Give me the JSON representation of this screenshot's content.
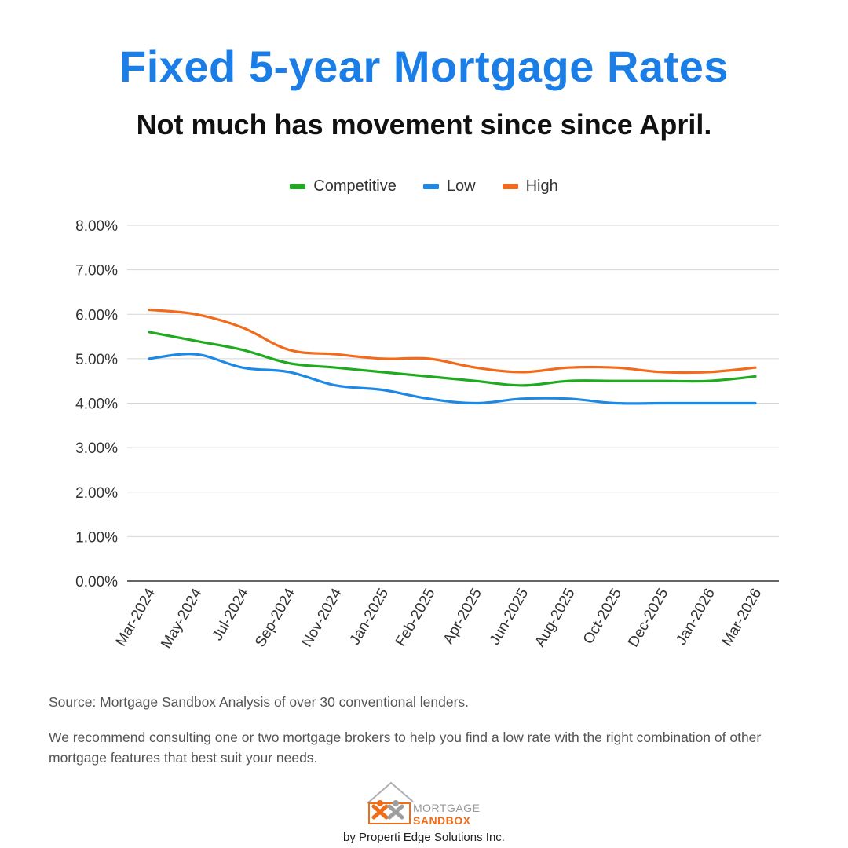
{
  "header": {
    "title": "Fixed 5-year Mortgage Rates",
    "subtitle": "Not much has movement since since April."
  },
  "colors": {
    "title": "#1a7ee6",
    "competitive": "#1faa1f",
    "low": "#1e88e5",
    "high": "#f26b1d",
    "grid": "#d6d6d6",
    "axis": "#333333"
  },
  "chart_data": {
    "type": "line",
    "title": "",
    "xlabel": "",
    "ylabel": "",
    "ylim": [
      0,
      8
    ],
    "y_ticks": [
      "0.00%",
      "1.00%",
      "2.00%",
      "3.00%",
      "4.00%",
      "5.00%",
      "6.00%",
      "7.00%",
      "8.00%"
    ],
    "legend_position": "top-center",
    "grid": true,
    "categories": [
      "Mar-2024",
      "May-2024",
      "Jul-2024",
      "Sep-2024",
      "Nov-2024",
      "Jan-2025",
      "Feb-2025",
      "Apr-2025",
      "Jun-2025",
      "Aug-2025",
      "Oct-2025",
      "Dec-2025",
      "Jan-2026",
      "Mar-2026"
    ],
    "series": [
      {
        "name": "Competitive",
        "color_key": "competitive",
        "values": [
          5.6,
          5.4,
          5.2,
          4.9,
          4.8,
          4.7,
          4.6,
          4.5,
          4.4,
          4.5,
          4.5,
          4.5,
          4.5,
          4.6
        ]
      },
      {
        "name": "Low",
        "color_key": "low",
        "values": [
          5.0,
          5.1,
          4.8,
          4.7,
          4.4,
          4.3,
          4.1,
          4.0,
          4.1,
          4.1,
          4.0,
          4.0,
          4.0,
          4.0
        ]
      },
      {
        "name": "High",
        "color_key": "high",
        "values": [
          6.1,
          6.0,
          5.7,
          5.2,
          5.1,
          5.0,
          5.0,
          4.8,
          4.7,
          4.8,
          4.8,
          4.7,
          4.7,
          4.8
        ]
      }
    ]
  },
  "footer": {
    "source": "Source: Mortgage Sandbox Analysis of over 30 conventional lenders.",
    "recommendation": "We recommend consulting one or two mortgage brokers to help you find a low rate with the right combination of other mortgage features that best suit your needs.",
    "logo_line1": "MORTGAGE",
    "logo_line2": "SANDBOX",
    "byline": "by Properti Edge Solutions Inc."
  }
}
